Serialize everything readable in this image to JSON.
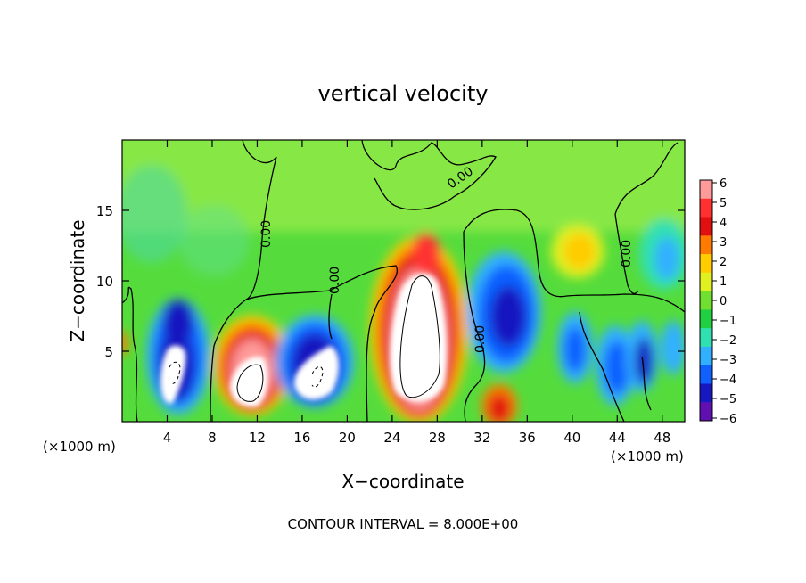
{
  "chart_data": {
    "type": "heatmap",
    "title": "vertical velocity",
    "xlabel": "X−coordinate",
    "ylabel": "Z−coordinate",
    "x_unit_label_left": "(×1000 m)",
    "x_unit_label_right": "(×1000 m)",
    "footer": "CONTOUR INTERVAL = 8.000E+00",
    "xlim": [
      0,
      50
    ],
    "ylim": [
      0,
      20
    ],
    "x_ticks": [
      4,
      8,
      12,
      16,
      20,
      24,
      28,
      32,
      36,
      40,
      44,
      48
    ],
    "y_ticks": [
      5,
      10,
      15
    ],
    "colorbar": {
      "ticks": [
        "6",
        "5",
        "4",
        "3",
        "2",
        "1",
        "0",
        "−1",
        "−2",
        "−3",
        "−4",
        "−5",
        "−6"
      ],
      "colors": [
        "#ff9a9a",
        "#ff3030",
        "#e01010",
        "#ff7a00",
        "#ffcc00",
        "#e0f020",
        "#70e030",
        "#20d040",
        "#30e0b0",
        "#30b0ff",
        "#1060ff",
        "#1818c0",
        "#6010b0"
      ]
    },
    "contour_label": "0.00",
    "cells": [
      {
        "x": 5,
        "z": 3.5,
        "w": -9
      },
      {
        "x": 5,
        "z": 6.5,
        "w": -4.5
      },
      {
        "x": 11.5,
        "z": 3.5,
        "w": 11
      },
      {
        "x": 17.5,
        "z": 3.8,
        "w": -9
      },
      {
        "x": 26.5,
        "z": 5.5,
        "w": 16
      },
      {
        "x": 27,
        "z": 11.5,
        "w": 5
      },
      {
        "x": 33.5,
        "z": 7.5,
        "w": -5
      },
      {
        "x": 33,
        "z": 1.5,
        "w": 4
      },
      {
        "x": 40.5,
        "z": 12,
        "w": 2.5
      },
      {
        "x": 40.5,
        "z": 4.5,
        "w": -3.5
      },
      {
        "x": 45,
        "z": 3,
        "w": -4
      },
      {
        "x": 48,
        "z": 3.5,
        "w": -3
      },
      {
        "x": 48.5,
        "z": 12,
        "w": -2
      }
    ]
  }
}
